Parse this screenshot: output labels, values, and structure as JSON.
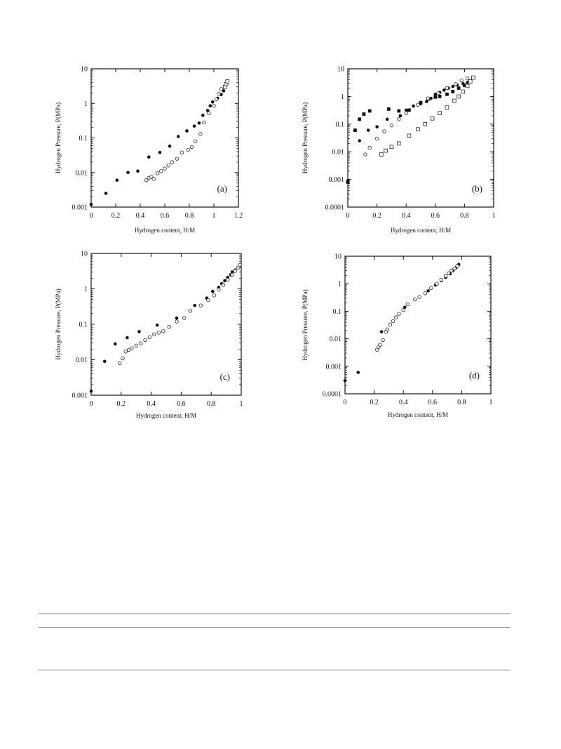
{
  "chart_data": [
    {
      "type": "scatter",
      "panel_label": "(a)",
      "xlabel": "Hydrogen content, H/M",
      "ylabel": "Hydrogen Pressure, P(MPa)",
      "xlim": [
        0,
        1.2
      ],
      "ylim": [
        0.001,
        10
      ],
      "yscale": "log",
      "xticks": [
        "0",
        "0.2",
        "0.4",
        "0.6",
        "0.8",
        "1",
        "1.2"
      ],
      "yticks": [
        "0.001",
        "0.01",
        "0.1",
        "1",
        "10"
      ],
      "grid": false,
      "series": [
        {
          "marker": "filled-circle",
          "points": [
            [
              0,
              0.0012
            ],
            [
              0.12,
              0.0025
            ],
            [
              0.21,
              0.006
            ],
            [
              0.3,
              0.01
            ],
            [
              0.38,
              0.011
            ],
            [
              0.47,
              0.028
            ],
            [
              0.56,
              0.038
            ],
            [
              0.64,
              0.058
            ],
            [
              0.71,
              0.11
            ],
            [
              0.78,
              0.16
            ],
            [
              0.84,
              0.22
            ],
            [
              0.88,
              0.27
            ],
            [
              0.91,
              0.45
            ],
            [
              0.95,
              0.62
            ],
            [
              0.97,
              0.85
            ],
            [
              0.99,
              1.1
            ],
            [
              1.03,
              1.4
            ],
            [
              1.06,
              1.8
            ],
            [
              1.08,
              2.3
            ],
            [
              1.1,
              3.6
            ]
          ]
        },
        {
          "marker": "open-circle",
          "points": [
            [
              0.45,
              0.006
            ],
            [
              0.47,
              0.007
            ],
            [
              0.49,
              0.0075
            ],
            [
              0.51,
              0.0065
            ],
            [
              0.54,
              0.0095
            ],
            [
              0.57,
              0.011
            ],
            [
              0.6,
              0.013
            ],
            [
              0.63,
              0.016
            ],
            [
              0.66,
              0.02
            ],
            [
              0.7,
              0.025
            ],
            [
              0.74,
              0.038
            ],
            [
              0.79,
              0.045
            ],
            [
              0.82,
              0.055
            ],
            [
              0.85,
              0.08
            ],
            [
              0.89,
              0.13
            ],
            [
              0.92,
              0.28
            ],
            [
              0.96,
              0.52
            ],
            [
              1.0,
              0.85
            ],
            [
              1.02,
              1.3
            ],
            [
              1.04,
              1.9
            ],
            [
              1.06,
              2.6
            ]
          ]
        },
        {
          "marker": "open-square",
          "points": [
            [
              1.09,
              3.0
            ],
            [
              1.1,
              3.6
            ],
            [
              1.11,
              4.3
            ]
          ]
        }
      ]
    },
    {
      "type": "scatter",
      "panel_label": "(b)",
      "xlabel": "Hydrogen content, H/M",
      "ylabel": "Hydrogen Pressure, P(MPa)",
      "xlim": [
        0,
        1
      ],
      "ylim": [
        0.0001,
        10
      ],
      "yscale": "log",
      "xticks": [
        "0",
        "0.2",
        "0.4",
        "0.6",
        "0.8",
        "1"
      ],
      "yticks": [
        "0.0001",
        "0.001",
        "0.01",
        "0.1",
        "1",
        "10"
      ],
      "grid": false,
      "series": [
        {
          "marker": "filled-square",
          "points": [
            [
              0,
              0.0008
            ],
            [
              0.05,
              0.06
            ],
            [
              0.08,
              0.15
            ],
            [
              0.11,
              0.23
            ],
            [
              0.15,
              0.3
            ],
            [
              0.28,
              0.35
            ],
            [
              0.35,
              0.3
            ],
            [
              0.42,
              0.32
            ],
            [
              0.5,
              0.6
            ],
            [
              0.55,
              0.8
            ],
            [
              0.6,
              0.95
            ],
            [
              0.63,
              1.0
            ],
            [
              0.68,
              1.2
            ],
            [
              0.72,
              1.5
            ],
            [
              0.76,
              2.0
            ],
            [
              0.8,
              2.5
            ]
          ]
        },
        {
          "marker": "filled-circle",
          "points": [
            [
              0,
              0.0009
            ],
            [
              0.08,
              0.025
            ],
            [
              0.14,
              0.06
            ],
            [
              0.2,
              0.08
            ],
            [
              0.27,
              0.15
            ],
            [
              0.36,
              0.2
            ],
            [
              0.4,
              0.32
            ],
            [
              0.45,
              0.45
            ],
            [
              0.5,
              0.55
            ],
            [
              0.54,
              0.65
            ],
            [
              0.57,
              0.85
            ],
            [
              0.6,
              1.2
            ],
            [
              0.63,
              1.4
            ],
            [
              0.66,
              1.7
            ],
            [
              0.69,
              2.0
            ],
            [
              0.72,
              2.3
            ],
            [
              0.75,
              2.6
            ],
            [
              0.79,
              2.9
            ],
            [
              0.82,
              3.2
            ]
          ]
        },
        {
          "marker": "open-circle",
          "points": [
            [
              0.12,
              0.008
            ],
            [
              0.15,
              0.014
            ],
            [
              0.2,
              0.03
            ],
            [
              0.25,
              0.055
            ],
            [
              0.3,
              0.09
            ],
            [
              0.35,
              0.15
            ],
            [
              0.4,
              0.25
            ],
            [
              0.48,
              0.5
            ],
            [
              0.55,
              0.85
            ],
            [
              0.62,
              1.3
            ],
            [
              0.68,
              2.0
            ],
            [
              0.74,
              2.8
            ],
            [
              0.78,
              3.8
            ],
            [
              0.82,
              4.5
            ]
          ]
        },
        {
          "marker": "open-square",
          "points": [
            [
              0.23,
              0.008
            ],
            [
              0.26,
              0.011
            ],
            [
              0.3,
              0.015
            ],
            [
              0.35,
              0.02
            ],
            [
              0.42,
              0.038
            ],
            [
              0.48,
              0.065
            ],
            [
              0.53,
              0.1
            ],
            [
              0.58,
              0.16
            ],
            [
              0.63,
              0.25
            ],
            [
              0.68,
              0.4
            ],
            [
              0.73,
              0.7
            ],
            [
              0.76,
              1.0
            ],
            [
              0.79,
              1.5
            ],
            [
              0.82,
              2.4
            ],
            [
              0.84,
              3.5
            ],
            [
              0.86,
              4.8
            ]
          ]
        }
      ]
    },
    {
      "type": "scatter",
      "panel_label": "(c)",
      "xlabel": "Hydrogen content, H/M",
      "ylabel": "Hydrogen Pressure, P(MPa)",
      "xlim": [
        0,
        1
      ],
      "ylim": [
        0.001,
        10
      ],
      "yscale": "log",
      "xticks": [
        "0",
        "0.2",
        "0.4",
        "0.6",
        "0.8",
        "1"
      ],
      "yticks": [
        "0.001",
        "0.01",
        "0.1",
        "1",
        "10"
      ],
      "grid": false,
      "series": [
        {
          "marker": "filled-circle",
          "points": [
            [
              0,
              0.0013
            ],
            [
              0.09,
              0.009
            ],
            [
              0.16,
              0.028
            ],
            [
              0.24,
              0.042
            ],
            [
              0.32,
              0.062
            ],
            [
              0.44,
              0.095
            ],
            [
              0.57,
              0.15
            ],
            [
              0.69,
              0.34
            ],
            [
              0.77,
              0.55
            ],
            [
              0.81,
              0.85
            ],
            [
              0.85,
              1.1
            ],
            [
              0.87,
              1.4
            ],
            [
              0.89,
              1.7
            ],
            [
              0.91,
              2.1
            ],
            [
              0.93,
              2.5
            ],
            [
              0.94,
              3.0
            ],
            [
              0.96,
              3.4
            ]
          ]
        },
        {
          "marker": "open-circle",
          "points": [
            [
              0.19,
              0.008
            ],
            [
              0.21,
              0.011
            ],
            [
              0.23,
              0.017
            ],
            [
              0.25,
              0.019
            ],
            [
              0.27,
              0.021
            ],
            [
              0.3,
              0.025
            ],
            [
              0.33,
              0.029
            ],
            [
              0.36,
              0.036
            ],
            [
              0.39,
              0.043
            ],
            [
              0.42,
              0.052
            ],
            [
              0.45,
              0.058
            ],
            [
              0.48,
              0.064
            ],
            [
              0.52,
              0.085
            ],
            [
              0.57,
              0.12
            ],
            [
              0.62,
              0.15
            ],
            [
              0.66,
              0.24
            ],
            [
              0.73,
              0.34
            ],
            [
              0.78,
              0.48
            ],
            [
              0.82,
              0.65
            ],
            [
              0.85,
              0.95
            ],
            [
              0.88,
              1.3
            ],
            [
              0.91,
              1.8
            ],
            [
              0.94,
              2.5
            ],
            [
              0.96,
              3.2
            ],
            [
              0.98,
              4.0
            ],
            [
              0.99,
              4.7
            ]
          ]
        }
      ]
    },
    {
      "type": "scatter",
      "panel_label": "(d)",
      "xlabel": "Hydrogen content, H/M",
      "ylabel": "Hydrogen Pressure, P(MPa)",
      "xlim": [
        0,
        1
      ],
      "ylim": [
        0.0001,
        10
      ],
      "yscale": "log",
      "xticks": [
        "0",
        "0.2",
        "0.4",
        "0.6",
        "0.8",
        "1"
      ],
      "yticks": [
        "0.0001",
        "0.001",
        "0.01",
        "0.1",
        "1",
        "10"
      ],
      "grid": false,
      "series": [
        {
          "marker": "filled-circle",
          "points": [
            [
              0,
              0.0003
            ],
            [
              0.09,
              0.0006
            ],
            [
              0.25,
              0.018
            ],
            [
              0.41,
              0.14
            ],
            [
              0.51,
              0.33
            ],
            [
              0.57,
              0.55
            ],
            [
              0.62,
              0.9
            ],
            [
              0.66,
              1.3
            ],
            [
              0.69,
              1.7
            ],
            [
              0.72,
              2.3
            ],
            [
              0.74,
              3.0
            ],
            [
              0.76,
              3.8
            ],
            [
              0.77,
              4.5
            ],
            [
              0.78,
              5.0
            ]
          ]
        },
        {
          "marker": "open-circle",
          "points": [
            [
              0.22,
              0.004
            ],
            [
              0.23,
              0.005
            ],
            [
              0.24,
              0.006
            ],
            [
              0.26,
              0.009
            ],
            [
              0.28,
              0.018
            ],
            [
              0.29,
              0.022
            ],
            [
              0.31,
              0.033
            ],
            [
              0.33,
              0.044
            ],
            [
              0.35,
              0.06
            ],
            [
              0.37,
              0.08
            ],
            [
              0.4,
              0.11
            ],
            [
              0.43,
              0.18
            ],
            [
              0.48,
              0.27
            ],
            [
              0.51,
              0.33
            ],
            [
              0.55,
              0.45
            ],
            [
              0.59,
              0.7
            ],
            [
              0.63,
              1.0
            ],
            [
              0.66,
              1.4
            ],
            [
              0.69,
              1.9
            ],
            [
              0.71,
              2.4
            ],
            [
              0.73,
              3.0
            ],
            [
              0.75,
              3.6
            ],
            [
              0.77,
              4.4
            ]
          ]
        }
      ]
    }
  ]
}
